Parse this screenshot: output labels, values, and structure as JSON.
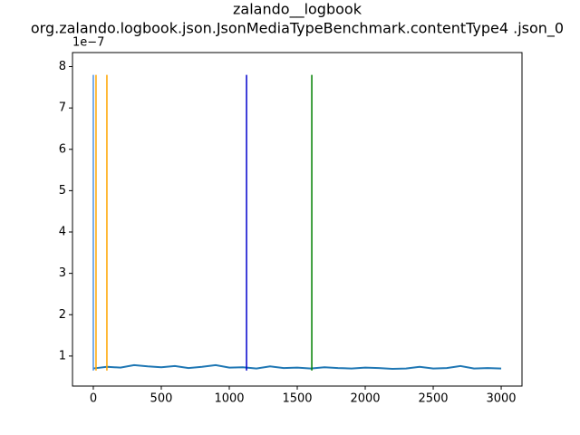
{
  "chart_data": {
    "type": "line",
    "title": "zalando__logbook",
    "subtitle": "org.zalando.logbook.json.JsonMediaTypeBenchmark.contentType4 .json_0",
    "y_offset_label": "1e−7",
    "x": [
      0,
      100,
      200,
      300,
      400,
      500,
      600,
      700,
      800,
      900,
      1000,
      1100,
      1200,
      1300,
      1400,
      1500,
      1600,
      1700,
      1800,
      1900,
      2000,
      2100,
      2200,
      2300,
      2400,
      2500,
      2600,
      2700,
      2800,
      2900,
      3000
    ],
    "series": [
      {
        "color": "#1f77b4",
        "values": [
          0.7,
          0.74,
          0.72,
          0.78,
          0.75,
          0.73,
          0.76,
          0.71,
          0.74,
          0.78,
          0.72,
          0.73,
          0.7,
          0.75,
          0.71,
          0.72,
          0.7,
          0.73,
          0.71,
          0.7,
          0.72,
          0.71,
          0.69,
          0.7,
          0.74,
          0.7,
          0.71,
          0.76,
          0.7,
          0.71,
          0.7
        ]
      }
    ],
    "vlines": [
      {
        "x": 0,
        "color": "#4a90e2",
        "ymin": 0.65,
        "ymax": 7.8
      },
      {
        "x": 20,
        "color": "orange",
        "ymin": 0.65,
        "ymax": 7.8
      },
      {
        "x": 100,
        "color": "orange",
        "ymin": 0.65,
        "ymax": 7.8
      },
      {
        "x": 1127,
        "color": "#0000cc",
        "ymin": 0.65,
        "ymax": 7.8
      },
      {
        "x": 1607,
        "color": "green",
        "ymin": 0.65,
        "ymax": 7.8
      }
    ],
    "xlim": [
      -153,
      3153
    ],
    "ylim": [
      0.274,
      8.34
    ],
    "xticks": [
      0,
      500,
      1000,
      1500,
      2000,
      2500,
      3000
    ],
    "yticks": [
      1,
      2,
      3,
      4,
      5,
      6,
      7,
      8
    ]
  }
}
